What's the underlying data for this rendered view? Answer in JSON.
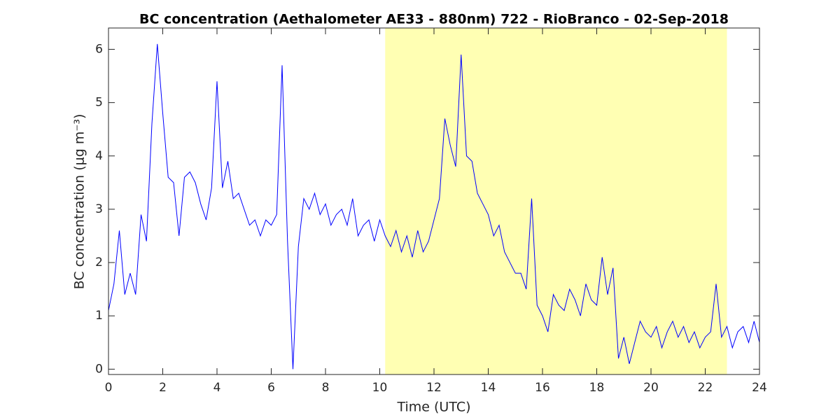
{
  "chart_data": {
    "type": "line",
    "title": "BC concentration (Aethalometer AE33 - 880nm) 722 - RioBranco - 02-Sep-2018",
    "xlabel": "Time (UTC)",
    "ylabel": "BC concentration (μg m⁻³)",
    "xlim": [
      0,
      24
    ],
    "xticks": [
      0,
      2,
      4,
      6,
      8,
      10,
      12,
      14,
      16,
      18,
      20,
      22,
      24
    ],
    "ylim": [
      -0.1,
      6.4
    ],
    "yticks": [
      0,
      1,
      2,
      3,
      4,
      5,
      6
    ],
    "shaded_span": [
      10.2,
      22.8
    ],
    "shaded_color": "#ffffb3",
    "x": [
      0,
      0.2,
      0.4,
      0.6,
      0.8,
      1,
      1.2,
      1.4,
      1.6,
      1.8,
      2,
      2.2,
      2.4,
      2.6,
      2.8,
      3,
      3.2,
      3.4,
      3.6,
      3.8,
      4,
      4.2,
      4.4,
      4.6,
      4.8,
      5,
      5.2,
      5.4,
      5.6,
      5.8,
      6,
      6.2,
      6.4,
      6.6,
      6.8,
      7,
      7.2,
      7.4,
      7.6,
      7.8,
      8,
      8.2,
      8.4,
      8.6,
      8.8,
      9,
      9.2,
      9.4,
      9.6,
      9.8,
      10,
      10.2,
      10.4,
      10.6,
      10.8,
      11,
      11.2,
      11.4,
      11.6,
      11.8,
      12,
      12.2,
      12.4,
      12.6,
      12.8,
      13,
      13.2,
      13.4,
      13.6,
      13.8,
      14,
      14.2,
      14.4,
      14.6,
      14.8,
      15,
      15.2,
      15.4,
      15.6,
      15.8,
      16,
      16.2,
      16.4,
      16.6,
      16.8,
      17,
      17.2,
      17.4,
      17.6,
      17.8,
      18,
      18.2,
      18.4,
      18.6,
      18.8,
      19,
      19.2,
      19.4,
      19.6,
      19.8,
      20,
      20.2,
      20.4,
      20.6,
      20.8,
      21,
      21.2,
      21.4,
      21.6,
      21.8,
      22,
      22.2,
      22.4,
      22.6,
      22.8,
      23,
      23.2,
      23.4,
      23.6,
      23.8,
      24
    ],
    "series": [
      {
        "name": "BC",
        "color": "#0000ff",
        "values": [
          1.1,
          1.6,
          2.6,
          1.4,
          1.8,
          1.4,
          2.9,
          2.4,
          4.6,
          6.1,
          4.8,
          3.6,
          3.5,
          2.5,
          3.6,
          3.7,
          3.5,
          3.1,
          2.8,
          3.4,
          5.4,
          3.4,
          3.9,
          3.2,
          3.3,
          3.0,
          2.7,
          2.8,
          2.5,
          2.8,
          2.7,
          2.9,
          5.7,
          2.4,
          0.0,
          2.3,
          3.2,
          3.0,
          3.3,
          2.9,
          3.1,
          2.7,
          2.9,
          3.0,
          2.7,
          3.2,
          2.5,
          2.7,
          2.8,
          2.4,
          2.8,
          2.5,
          2.3,
          2.6,
          2.2,
          2.5,
          2.1,
          2.6,
          2.2,
          2.4,
          2.8,
          3.2,
          4.7,
          4.2,
          3.8,
          5.9,
          4.0,
          3.9,
          3.3,
          3.1,
          2.9,
          2.5,
          2.7,
          2.2,
          2.0,
          1.8,
          1.8,
          1.5,
          3.2,
          1.2,
          1.0,
          0.7,
          1.4,
          1.2,
          1.1,
          1.5,
          1.3,
          1.0,
          1.6,
          1.3,
          1.2,
          2.1,
          1.4,
          1.9,
          0.2,
          0.6,
          0.1,
          0.5,
          0.9,
          0.7,
          0.6,
          0.8,
          0.4,
          0.7,
          0.9,
          0.6,
          0.8,
          0.5,
          0.7,
          0.4,
          0.6,
          0.7,
          1.6,
          0.6,
          0.8,
          0.4,
          0.7,
          0.8,
          0.5,
          0.9,
          0.5
        ]
      }
    ]
  }
}
